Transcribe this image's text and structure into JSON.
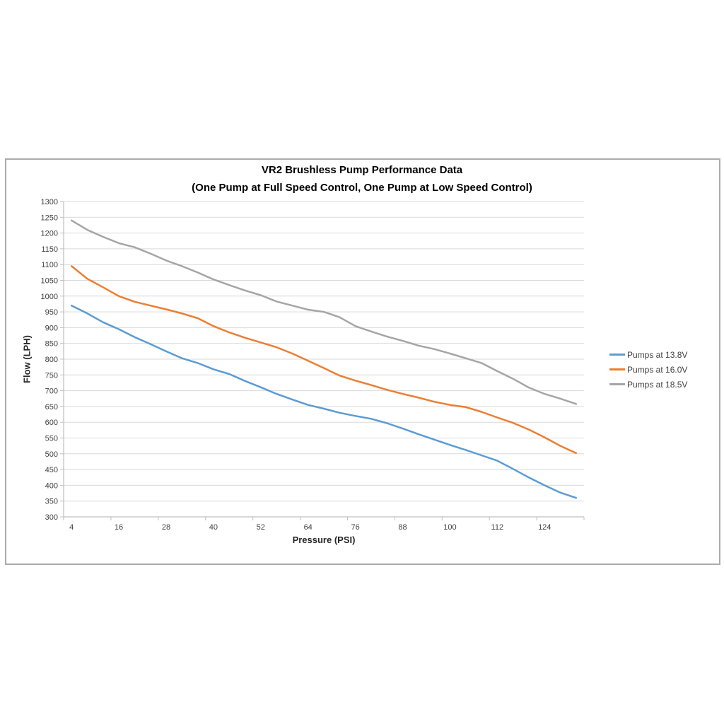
{
  "page": {
    "background": "#ffffff",
    "frame_border_color": "#ababab"
  },
  "chart_data": {
    "type": "line",
    "title": "VR2 Brushless Pump Performance Data",
    "subtitle": "(One Pump at Full Speed Control, One Pump at Low Speed Control)",
    "xlabel": "Pressure (PSI)",
    "ylabel": "Flow (LPH)",
    "x": [
      4,
      8,
      12,
      16,
      20,
      24,
      28,
      32,
      36,
      40,
      44,
      48,
      52,
      56,
      60,
      64,
      68,
      72,
      76,
      80,
      84,
      88,
      92,
      96,
      100,
      104,
      108,
      112,
      116,
      120,
      124,
      128,
      132
    ],
    "x_tick_labels": [
      "4",
      "16",
      "28",
      "40",
      "52",
      "64",
      "76",
      "88",
      "100",
      "112",
      "124"
    ],
    "x_tick_label_interval": 3,
    "ylim": [
      300,
      1300
    ],
    "y_tick_step": 50,
    "grid": true,
    "legend_position": "right",
    "colors": {
      "gridline": "#d9d9d9",
      "axis_line": "#bfbfbf",
      "tick_label": "#404040",
      "title_text": "#000000"
    },
    "series": [
      {
        "name": "Pumps at 13.8V",
        "color": "#5b9bd5",
        "values": [
          970,
          945,
          917,
          895,
          870,
          848,
          825,
          803,
          788,
          768,
          753,
          731,
          711,
          690,
          672,
          655,
          643,
          630,
          620,
          611,
          597,
          580,
          562,
          545,
          528,
          512,
          495,
          478,
          452,
          425,
          400,
          377,
          360
        ]
      },
      {
        "name": "Pumps at 16.0V",
        "color": "#ed7d31",
        "values": [
          1095,
          1055,
          1028,
          1000,
          982,
          970,
          958,
          945,
          930,
          905,
          885,
          868,
          853,
          838,
          818,
          795,
          772,
          748,
          732,
          718,
          703,
          690,
          678,
          665,
          655,
          648,
          633,
          615,
          598,
          577,
          552,
          525,
          502
        ]
      },
      {
        "name": "Pumps at 18.5V",
        "color": "#a5a5a5",
        "values": [
          1240,
          1210,
          1188,
          1168,
          1155,
          1135,
          1113,
          1095,
          1075,
          1053,
          1035,
          1018,
          1003,
          983,
          970,
          957,
          950,
          933,
          905,
          888,
          872,
          858,
          843,
          832,
          818,
          803,
          788,
          762,
          738,
          710,
          690,
          675,
          658
        ]
      }
    ]
  }
}
